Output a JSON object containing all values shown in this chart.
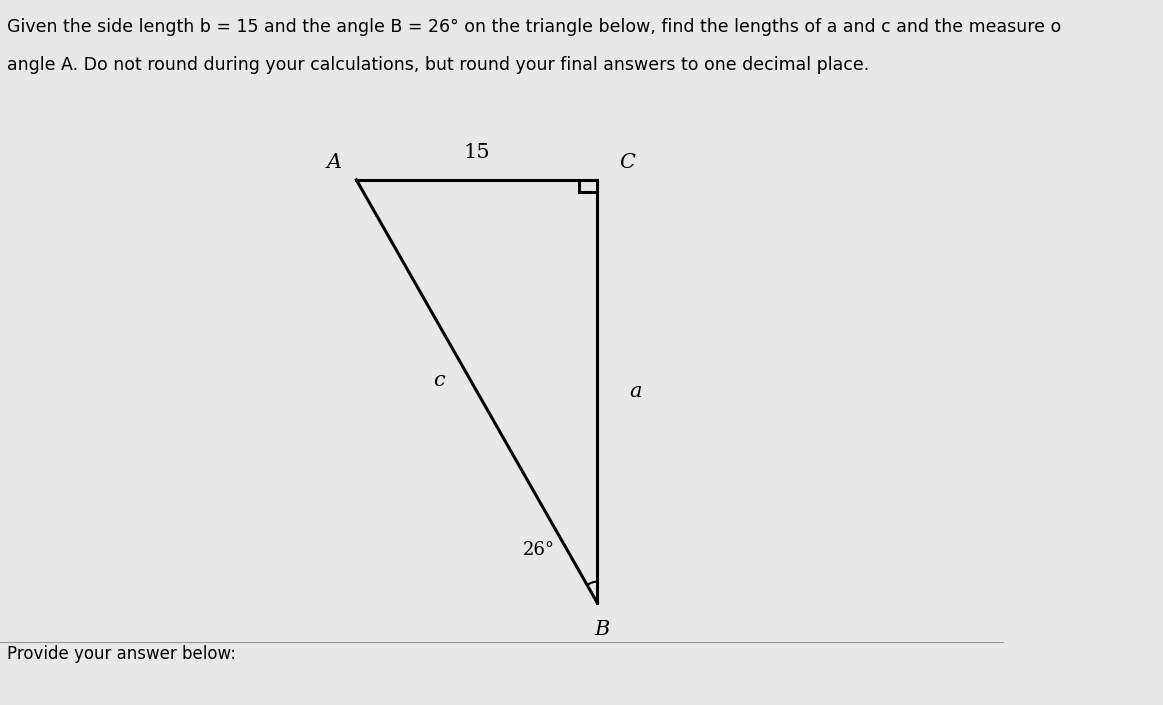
{
  "background_color": "#e8e8e8",
  "title_line1": "Given the side length b = 15 and the angle B = 26° on the triangle below, find the lengths of a and c and the measure o",
  "title_line2": "angle A. Do not round during your calculations, but round your final answers to one decimal place.",
  "footer_text": "Provide your answer below:",
  "triangle": {
    "A": [
      0.355,
      0.745
    ],
    "C": [
      0.595,
      0.745
    ],
    "B": [
      0.595,
      0.145
    ]
  },
  "label_A": "A",
  "label_B": "B",
  "label_C": "C",
  "label_side_top": "15",
  "label_side_right": "a",
  "label_side_hyp": "c",
  "label_angle_B": "26°",
  "line_color": "#000000",
  "text_color": "#000000",
  "font_size_title": 12.5,
  "font_size_labels": 15,
  "font_size_footer": 12
}
